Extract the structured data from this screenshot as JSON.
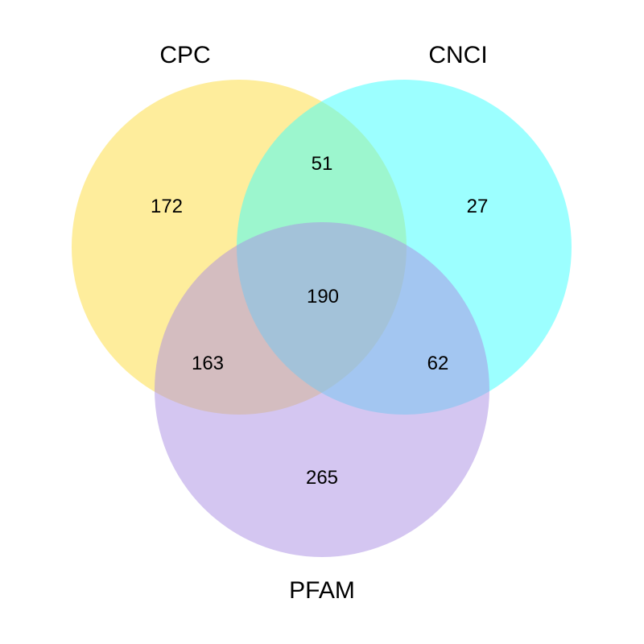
{
  "sets": [
    {
      "id": "cpc",
      "label": "CPC",
      "color": "#FDDB3A"
    },
    {
      "id": "cnci",
      "label": "CNCI",
      "color": "#39FFFF"
    },
    {
      "id": "pfam",
      "label": "PFAM",
      "color": "#A98EE4"
    }
  ],
  "regions": {
    "cpc_only": "172",
    "cnci_only": "27",
    "pfam_only": "265",
    "cpc_cnci": "51",
    "cpc_pfam": "163",
    "cnci_pfam": "62",
    "all_three": "190"
  }
}
